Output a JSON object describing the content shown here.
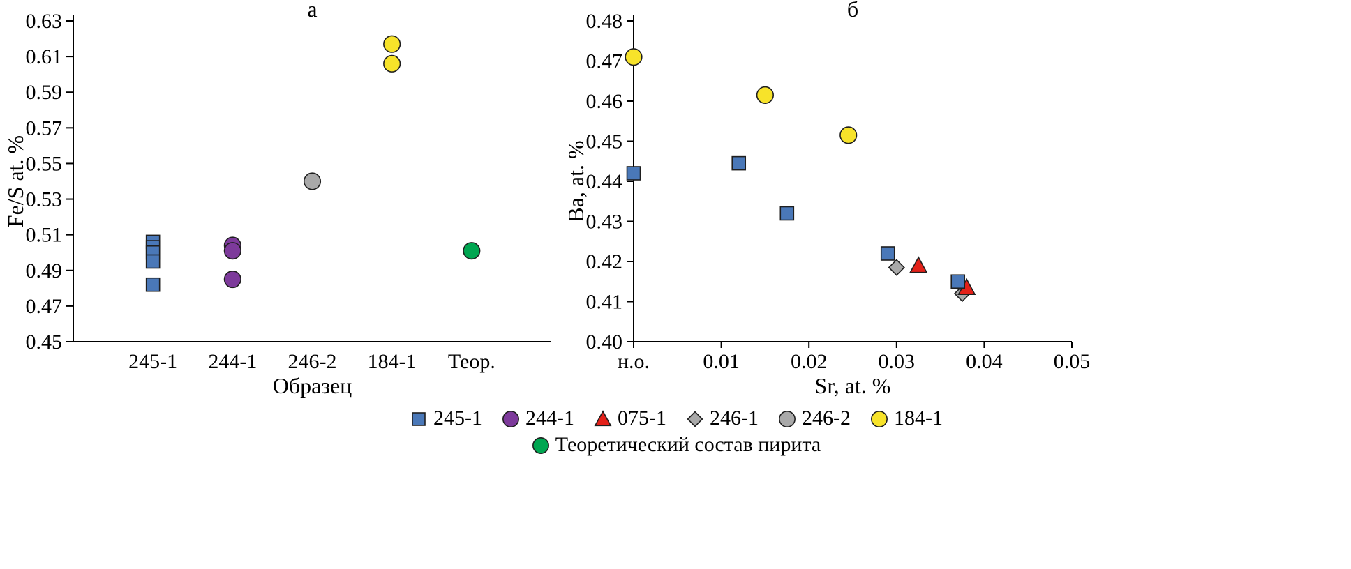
{
  "figure": {
    "background": "#ffffff"
  },
  "colors": {
    "blue": "#4a78b8",
    "purple": "#7d3a9b",
    "red": "#e32119",
    "gray": "#a9a9a9",
    "yellow": "#f7e32a",
    "green": "#00a651",
    "marker_stroke": "#1f1f1f",
    "axis": "#000000",
    "text": "#000000"
  },
  "chart_data": [
    {
      "id": "a",
      "type": "scatter",
      "title": "а",
      "xlabel": "Образец",
      "ylabel": "Fe/S at. %",
      "x_mode": "category",
      "categories": [
        "245-1",
        "244-1",
        "246-2",
        "184-1",
        "Теор."
      ],
      "ylim": [
        0.45,
        0.63
      ],
      "yticks": [
        "0.45",
        "0.47",
        "0.49",
        "0.51",
        "0.53",
        "0.55",
        "0.57",
        "0.59",
        "0.61",
        "0.63"
      ],
      "grid": false,
      "legend_position": "none",
      "series": [
        {
          "name": "245-1",
          "marker": "square",
          "color": "blue",
          "points": [
            [
              0,
              0.506
            ],
            [
              0,
              0.503
            ],
            [
              0,
              0.5
            ],
            [
              0,
              0.495
            ],
            [
              0,
              0.482
            ]
          ]
        },
        {
          "name": "244-1",
          "marker": "circle",
          "color": "purple",
          "points": [
            [
              1,
              0.504
            ],
            [
              1,
              0.501
            ],
            [
              1,
              0.485
            ]
          ]
        },
        {
          "name": "246-2",
          "marker": "circle",
          "color": "gray",
          "points": [
            [
              2,
              0.54
            ]
          ]
        },
        {
          "name": "184-1",
          "marker": "circle",
          "color": "yellow",
          "points": [
            [
              3,
              0.617
            ],
            [
              3,
              0.606
            ]
          ]
        },
        {
          "name": "Теор.",
          "marker": "circle",
          "color": "green",
          "points": [
            [
              4,
              0.501
            ]
          ]
        }
      ]
    },
    {
      "id": "b",
      "type": "scatter",
      "title": "б",
      "xlabel": "Sr, at. %",
      "ylabel": "Ba, at. %",
      "x_mode": "linear",
      "xlim": [
        0,
        0.05
      ],
      "xticks": [
        {
          "value": 0,
          "label": "н.о."
        },
        {
          "value": 0.01,
          "label": "0.01"
        },
        {
          "value": 0.02,
          "label": "0.02"
        },
        {
          "value": 0.03,
          "label": "0.03"
        },
        {
          "value": 0.04,
          "label": "0.04"
        },
        {
          "value": 0.05,
          "label": "0.05"
        }
      ],
      "ylim": [
        0.4,
        0.48
      ],
      "yticks": [
        "0.40",
        "0.41",
        "0.42",
        "0.43",
        "0.44",
        "0.45",
        "0.46",
        "0.47",
        "0.48"
      ],
      "grid": false,
      "legend_position": "none",
      "series": [
        {
          "name": "184-1",
          "marker": "circle",
          "color": "yellow",
          "points": [
            [
              0,
              0.471
            ],
            [
              0.015,
              0.4615
            ],
            [
              0.0245,
              0.4515
            ]
          ]
        },
        {
          "name": "246-1",
          "marker": "diamond",
          "color": "gray",
          "points": [
            [
              0.03,
              0.4185
            ],
            [
              0.0375,
              0.412
            ]
          ]
        },
        {
          "name": "075-1",
          "marker": "triangle",
          "color": "red",
          "points": [
            [
              0.0325,
              0.419
            ],
            [
              0.038,
              0.4135
            ]
          ]
        },
        {
          "name": "245-1",
          "marker": "square",
          "color": "blue",
          "points": [
            [
              0,
              0.442
            ],
            [
              0.012,
              0.4445
            ],
            [
              0.0175,
              0.432
            ],
            [
              0.029,
              0.422
            ],
            [
              0.037,
              0.415
            ]
          ]
        }
      ]
    }
  ],
  "legend": {
    "rows": [
      [
        {
          "marker": "square",
          "color": "blue",
          "label": "245-1"
        },
        {
          "marker": "circle",
          "color": "purple",
          "label": "244-1"
        },
        {
          "marker": "triangle",
          "color": "red",
          "label": "075-1"
        },
        {
          "marker": "diamond",
          "color": "gray",
          "label": "246-1"
        },
        {
          "marker": "circle",
          "color": "gray",
          "label": "246-2"
        },
        {
          "marker": "circle",
          "color": "yellow",
          "label": "184-1"
        }
      ],
      [
        {
          "marker": "circle",
          "color": "green",
          "label": "Теоретический состав пирита"
        }
      ]
    ]
  }
}
